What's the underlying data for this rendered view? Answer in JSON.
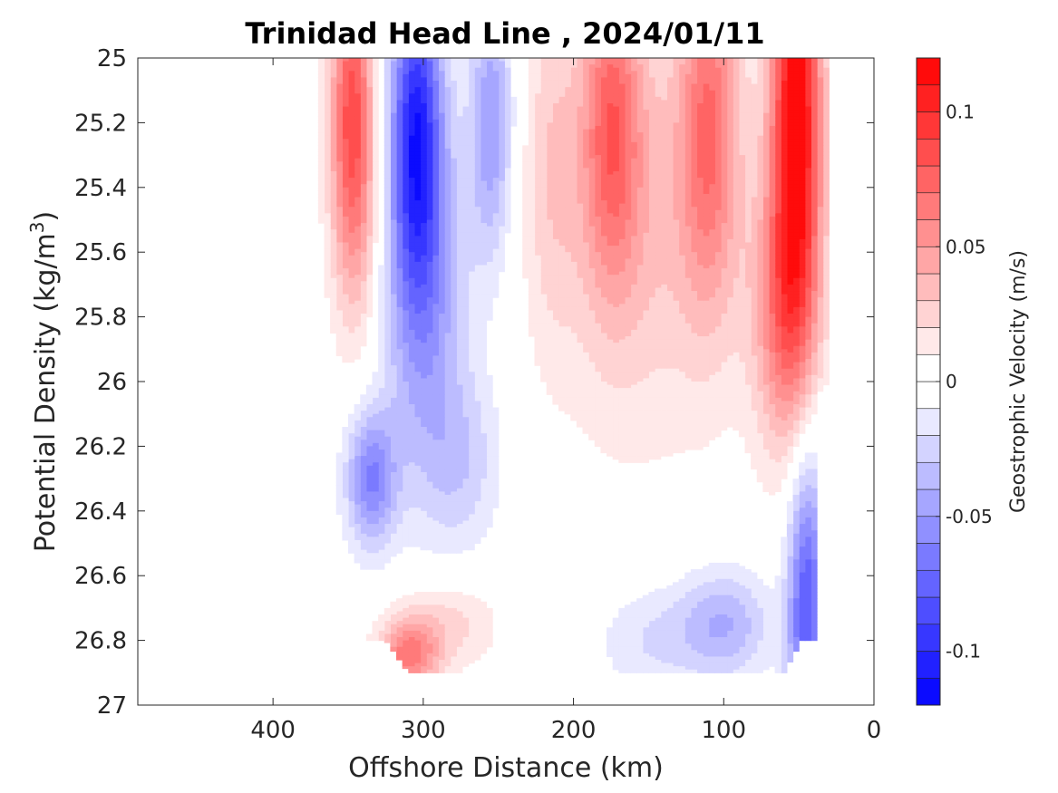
{
  "chart_data": {
    "type": "heatmap",
    "title": "Trinidad Head Line , 2024/01/11",
    "xlabel": "Offshore Distance (km)",
    "ylabel_main": "Potential Density (kg/m",
    "ylabel_sup": "3",
    "ylabel_close": ")",
    "x_reversed": true,
    "xlim": [
      0,
      490
    ],
    "ylim": [
      25,
      27
    ],
    "y_reversed": true,
    "xticks": [
      400,
      300,
      200,
      100,
      0
    ],
    "xtick_labels": [
      "400",
      "300",
      "200",
      "100",
      "0"
    ],
    "yticks": [
      25,
      25.2,
      25.4,
      25.6,
      25.8,
      26,
      26.2,
      26.4,
      26.6,
      26.8,
      27
    ],
    "ytick_labels": [
      "25",
      "25.2",
      "25.4",
      "25.6",
      "25.8",
      "26",
      "26.2",
      "26.4",
      "26.6",
      "26.8",
      "27"
    ],
    "grid": false,
    "colorbar": {
      "label": "Geostrophic Velocity (m/s)",
      "range": [
        -0.12,
        0.12
      ],
      "step": 0.01,
      "ticks": [
        0.1,
        0.05,
        0,
        -0.05,
        -0.1
      ],
      "tick_labels": [
        "0.1",
        "0.05",
        "0",
        "-0.05",
        "-0.1"
      ],
      "neg_color": "#0000ff",
      "pos_color": "#ff0000",
      "zero_color": "#ffffff"
    },
    "data_extent": {
      "x_min": 30,
      "x_max": 370,
      "bottom_profile": [
        {
          "x": 370,
          "y": 26.8
        },
        {
          "x": 325,
          "y": 26.8
        },
        {
          "x": 310,
          "y": 26.9
        },
        {
          "x": 60,
          "y": 26.9
        },
        {
          "x": 48,
          "y": 26.8
        },
        {
          "x": 40,
          "y": 26.8
        },
        {
          "x": 40,
          "y": 26.05
        },
        {
          "x": 30,
          "y": 26.0
        },
        {
          "x": 30,
          "y": 25.0
        }
      ]
    },
    "features": [
      {
        "kind": "max",
        "x": 348,
        "y": 25.1,
        "value": 0.07,
        "sx": 10,
        "sy": 0.3
      },
      {
        "kind": "max",
        "x": 345,
        "y": 25.5,
        "value": 0.04,
        "sx": 12,
        "sy": 0.3
      },
      {
        "kind": "min",
        "x": 305,
        "y": 25.2,
        "value": -0.09,
        "sx": 12,
        "sy": 0.35
      },
      {
        "kind": "min",
        "x": 300,
        "y": 25.7,
        "value": -0.05,
        "sx": 20,
        "sy": 0.4
      },
      {
        "kind": "min",
        "x": 255,
        "y": 25.2,
        "value": -0.05,
        "sx": 10,
        "sy": 0.3
      },
      {
        "kind": "min",
        "x": 335,
        "y": 26.3,
        "value": -0.06,
        "sx": 12,
        "sy": 0.15
      },
      {
        "kind": "min",
        "x": 275,
        "y": 26.25,
        "value": -0.025,
        "sx": 20,
        "sy": 0.2
      },
      {
        "kind": "max",
        "x": 310,
        "y": 26.85,
        "value": 0.06,
        "sx": 14,
        "sy": 0.08
      },
      {
        "kind": "max",
        "x": 285,
        "y": 26.75,
        "value": 0.025,
        "sx": 25,
        "sy": 0.1
      },
      {
        "kind": "max",
        "x": 175,
        "y": 25.2,
        "value": 0.06,
        "sx": 14,
        "sy": 0.35
      },
      {
        "kind": "max",
        "x": 155,
        "y": 25.5,
        "value": 0.03,
        "sx": 45,
        "sy": 0.5
      },
      {
        "kind": "max",
        "x": 110,
        "y": 25.2,
        "value": 0.06,
        "sx": 14,
        "sy": 0.4
      },
      {
        "kind": "max",
        "x": 52,
        "y": 25.15,
        "value": 0.12,
        "sx": 12,
        "sy": 0.5
      },
      {
        "kind": "max",
        "x": 60,
        "y": 25.8,
        "value": 0.05,
        "sx": 16,
        "sy": 0.3
      },
      {
        "kind": "min",
        "x": 45,
        "y": 26.7,
        "value": -0.08,
        "sx": 9,
        "sy": 0.35
      },
      {
        "kind": "min",
        "x": 100,
        "y": 26.75,
        "value": -0.04,
        "sx": 22,
        "sy": 0.12
      },
      {
        "kind": "min",
        "x": 150,
        "y": 26.8,
        "value": -0.02,
        "sx": 25,
        "sy": 0.12
      },
      {
        "kind": "max",
        "x": 215,
        "y": 25.3,
        "value": 0.02,
        "sx": 12,
        "sy": 0.4
      }
    ]
  }
}
